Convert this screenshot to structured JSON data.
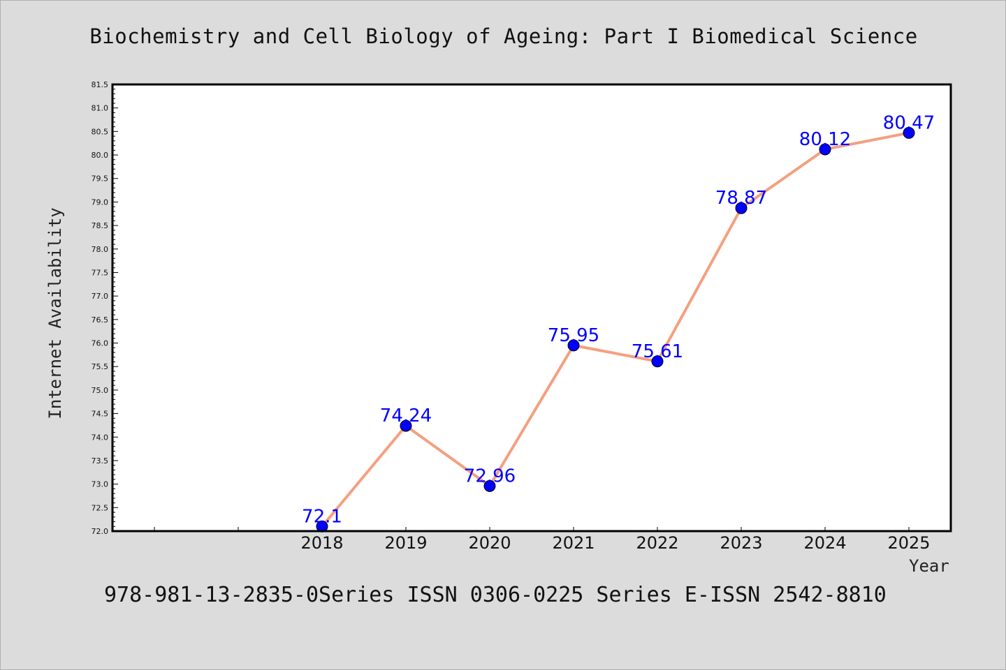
{
  "page": {
    "title": "Biochemistry and Cell Biology of Ageing: Part I Biomedical Science",
    "footer": "978-981-13-2835-0Series ISSN 0306-0225 Series E-ISSN 2542-8810"
  },
  "chart_data": {
    "type": "line",
    "title": "Biochemistry and Cell Biology of Ageing: Part I Biomedical Science",
    "xlabel": "Year",
    "ylabel": "Internet Availability",
    "categories": [
      "",
      "",
      "2018",
      "2019",
      "2020",
      "2021",
      "2022",
      "2023",
      "2024",
      "2025"
    ],
    "series": [
      {
        "x": [
          "2018",
          "2019",
          "2020",
          "2021",
          "2022",
          "2023",
          "2024",
          "2025"
        ],
        "values": [
          72.1,
          74.24,
          72.96,
          75.95,
          75.61,
          78.87,
          80.12,
          80.47
        ],
        "labels": [
          "72.1",
          "74.24",
          "72.96",
          "75.95",
          "75.61",
          "78.87",
          "80.12",
          "80.47"
        ],
        "line_color": "#f4a07f",
        "marker_color": "#0000ff"
      }
    ],
    "ylim": [
      72.0,
      81.5
    ],
    "yticks": [
      "72.0",
      "72.5",
      "73.0",
      "73.5",
      "74.0",
      "74.5",
      "75.0",
      "75.5",
      "76.0",
      "76.5",
      "77.0",
      "77.5",
      "78.0",
      "78.5",
      "79.0",
      "79.5",
      "80.0",
      "80.5",
      "81.0",
      "81.5"
    ],
    "grid": false,
    "legend": "none",
    "colors": {
      "background": "#dcdcdc",
      "plot_background": "#ffffff",
      "line": "#f4a07f",
      "marker": "#0000ff",
      "data_label": "#0000ff"
    }
  }
}
